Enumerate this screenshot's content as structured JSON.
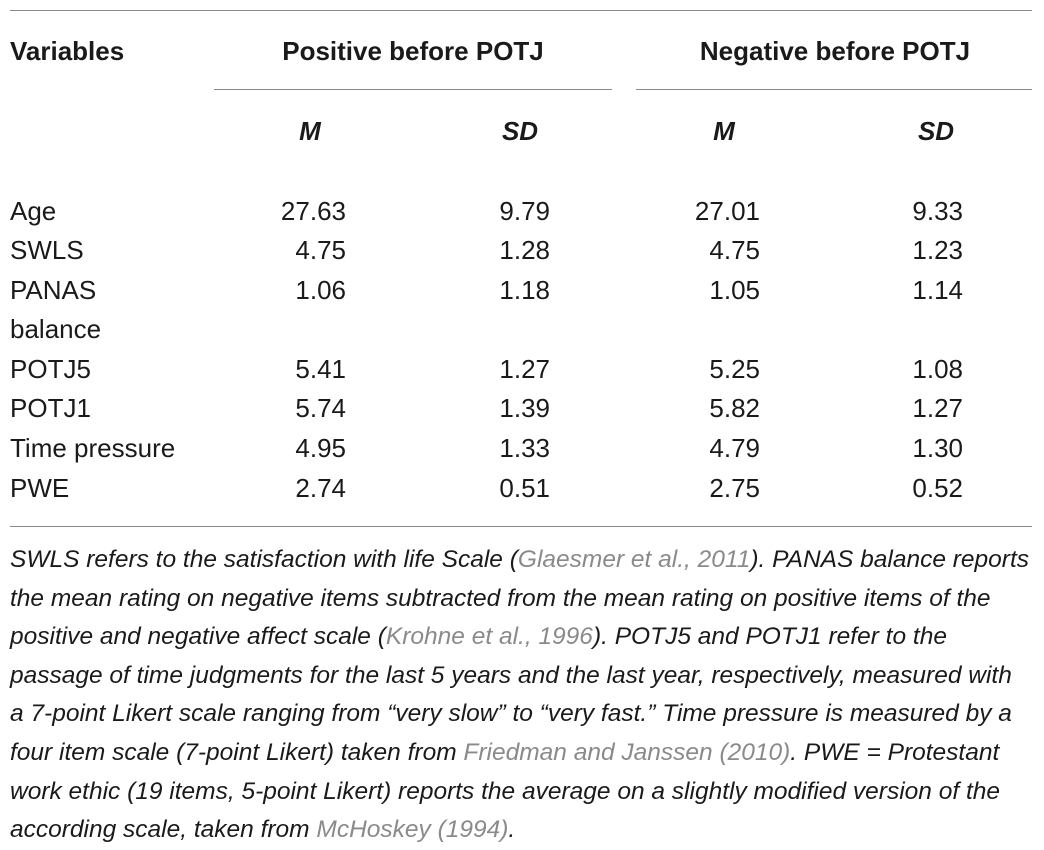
{
  "table": {
    "header": {
      "variables": "Variables",
      "group1": "Positive before POTJ",
      "group2": "Negative before POTJ",
      "m": "M",
      "sd": "SD"
    },
    "rows": [
      {
        "label": "Age",
        "label2": "",
        "m1": "27.63",
        "sd1": "9.79",
        "m2": "27.01",
        "sd2": "9.33"
      },
      {
        "label": "SWLS",
        "label2": "",
        "m1": "4.75",
        "sd1": "1.28",
        "m2": "4.75",
        "sd2": "1.23"
      },
      {
        "label": "PANAS",
        "label2": "balance",
        "m1": "1.06",
        "sd1": "1.18",
        "m2": "1.05",
        "sd2": "1.14"
      },
      {
        "label": "POTJ5",
        "label2": "",
        "m1": "5.41",
        "sd1": "1.27",
        "m2": "5.25",
        "sd2": "1.08"
      },
      {
        "label": "POTJ1",
        "label2": "",
        "m1": "5.74",
        "sd1": "1.39",
        "m2": "5.82",
        "sd2": "1.27"
      },
      {
        "label": "Time pressure",
        "label2": "",
        "m1": "4.95",
        "sd1": "1.33",
        "m2": "4.79",
        "sd2": "1.30"
      },
      {
        "label": "PWE",
        "label2": "",
        "m1": "2.74",
        "sd1": "0.51",
        "m2": "2.75",
        "sd2": "0.52"
      }
    ]
  },
  "footnote": {
    "p1": "SWLS refers to the satisfaction with life Scale (",
    "c1": "Glaesmer et al., 2011",
    "p2": "). PANAS balance reports the mean rating on negative items subtracted from the mean rating on positive items of the positive and negative affect scale (",
    "c2": "Krohne et al., 1996",
    "p3": "). POTJ5 and POTJ1 refer to the passage of time judgments for the last 5 years and the last year, respectively, measured with a 7-point Likert scale ranging from “very slow” to “very fast.” Time pressure is measured by a four item scale (7-point Likert) taken from ",
    "c3": "Friedman and Janssen (2010)",
    "p4": ". PWE = Protestant work ethic (19 items, 5-point Likert) reports the average on a slightly modified version of the according scale, taken from ",
    "c4": "McHoskey (1994)",
    "p5": "."
  }
}
